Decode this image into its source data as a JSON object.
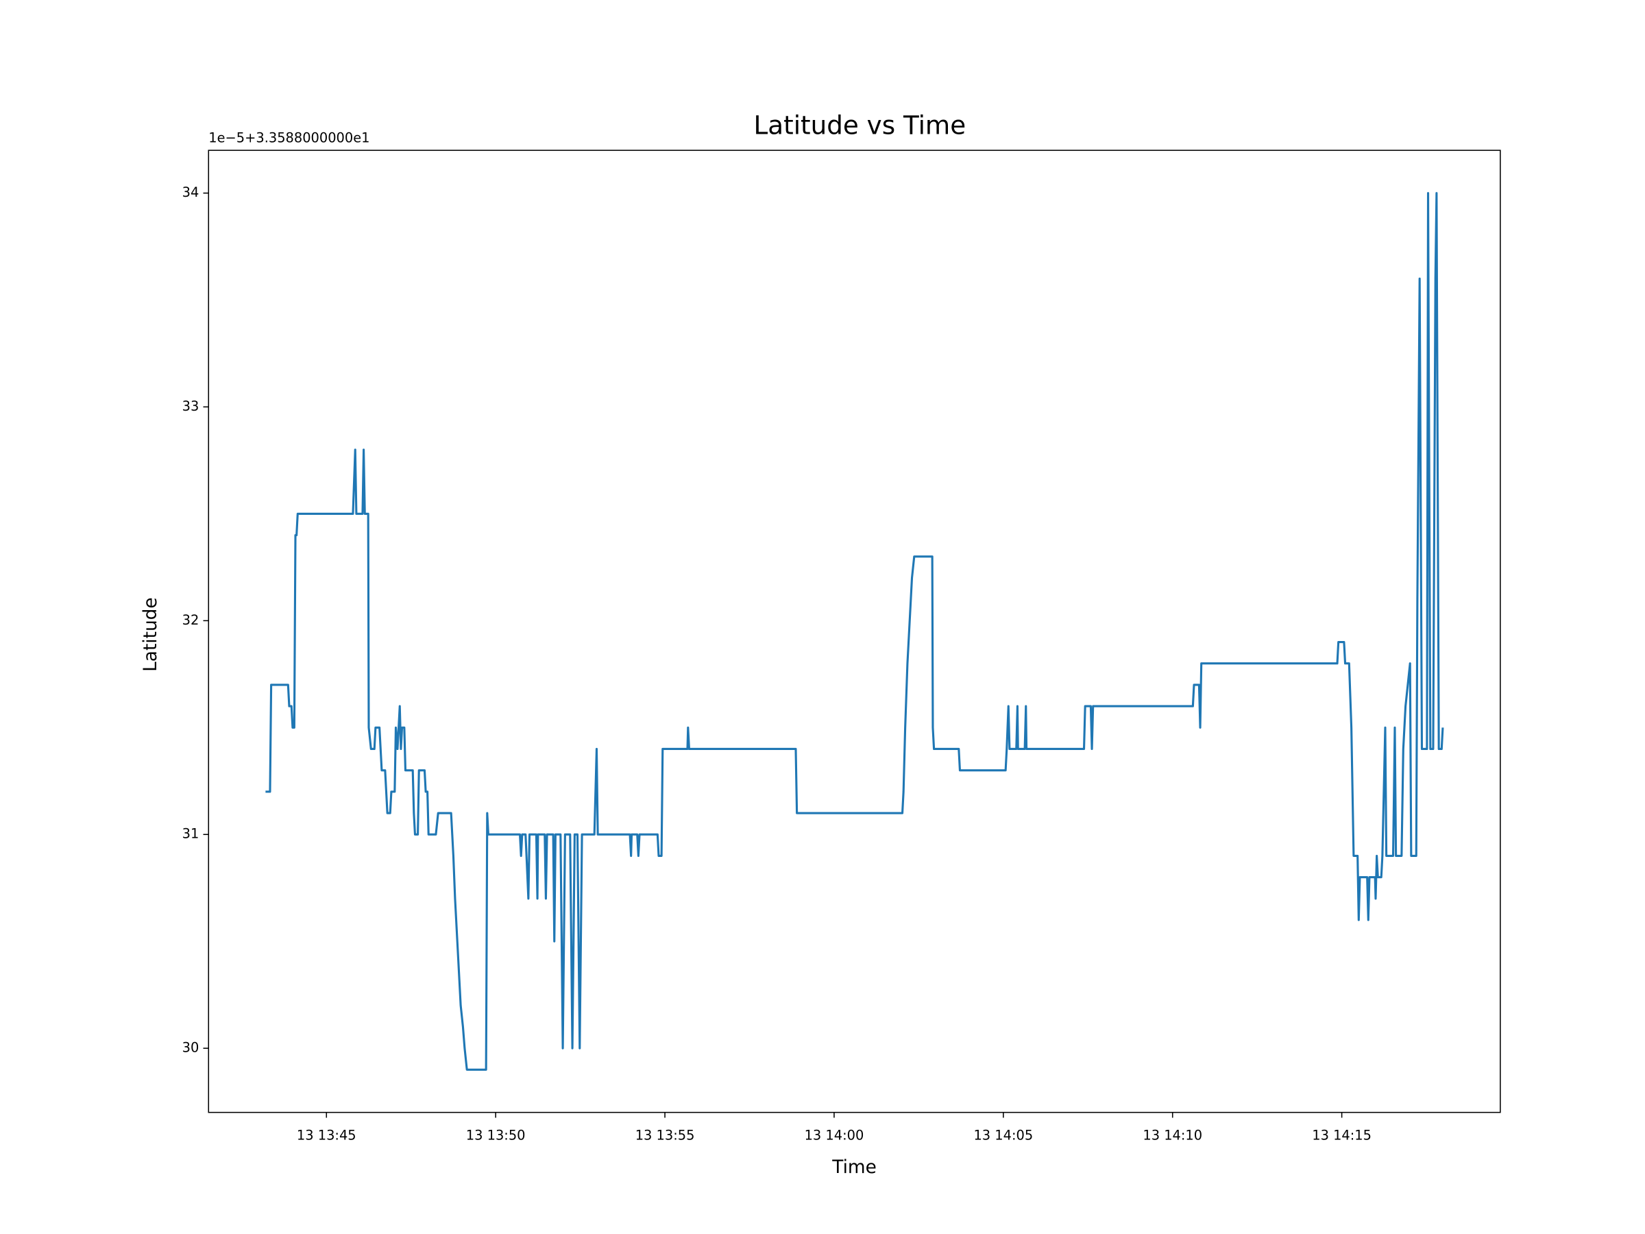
{
  "chart_data": {
    "type": "line",
    "title": "Latitude vs Time",
    "xlabel": "Time",
    "ylabel": "Latitude",
    "offset_text": "1e−5+3.3588000000e1",
    "xlim": [
      "13 13:41:31",
      "13 14:19:41"
    ],
    "xticks": [
      "13 13:45",
      "13 13:50",
      "13 13:55",
      "13 14:00",
      "13 14:05",
      "13 14:10",
      "13 14:15"
    ],
    "ylim": [
      29.7,
      34.2
    ],
    "yticks": [
      30,
      31,
      32,
      33,
      34
    ],
    "grid": false,
    "series": [
      {
        "color": "#1f77b4",
        "x": [
          "13 13:43:12",
          "13 13:43:20",
          "13 13:43:22",
          "13 13:43:52",
          "13 13:43:54",
          "13 13:43:58",
          "13 13:44:00",
          "13 13:44:03",
          "13 13:44:05",
          "13 13:44:07",
          "13 13:44:09",
          "13 13:45:47",
          "13 13:45:51",
          "13 13:45:53",
          "13 13:46:04",
          "13 13:46:06",
          "13 13:46:08",
          "13 13:46:14",
          "13 13:46:15",
          "13 13:46:19",
          "13 13:46:25",
          "13 13:46:27",
          "13 13:46:34",
          "13 13:46:36",
          "13 13:46:38",
          "13 13:46:44",
          "13 13:46:46",
          "13 13:46:48",
          "13 13:46:53",
          "13 13:46:55",
          "13 13:47:01",
          "13 13:47:03",
          "13 13:47:06",
          "13 13:47:10",
          "13 13:47:12",
          "13 13:47:14",
          "13 13:47:18",
          "13 13:47:20",
          "13 13:47:33",
          "13 13:47:35",
          "13 13:47:37",
          "13 13:47:42",
          "13 13:47:44",
          "13 13:47:54",
          "13 13:47:56",
          "13 13:47:59",
          "13 13:48:01",
          "13 13:48:14",
          "13 13:48:18",
          "13 13:48:41",
          "13 13:48:45",
          "13 13:48:48",
          "13 13:48:50",
          "13 13:48:52",
          "13 13:48:54",
          "13 13:48:56",
          "13 13:48:58",
          "13 13:49:02",
          "13 13:49:05",
          "13 13:49:09",
          "13 13:49:43",
          "13 13:49:45",
          "13 13:49:47",
          "13 13:50:43",
          "13 13:50:45",
          "13 13:50:47",
          "13 13:50:53",
          "13 13:50:58",
          "13 13:51:00",
          "13 13:51:12",
          "13 13:51:14",
          "13 13:51:15",
          "13 13:51:27",
          "13 13:51:29",
          "13 13:51:31",
          "13 13:51:42",
          "13 13:51:44",
          "13 13:51:46",
          "13 13:51:55",
          "13 13:51:59",
          "13 13:52:03",
          "13 13:52:12",
          "13 13:52:16",
          "13 13:52:20",
          "13 13:52:25",
          "13 13:52:29",
          "13 13:52:33",
          "13 13:52:55",
          "13 13:52:59",
          "13 13:53:01",
          "13 13:53:58",
          "13 13:54:00",
          "13 13:54:01",
          "13 13:54:11",
          "13 13:54:13",
          "13 13:54:15",
          "13 13:54:47",
          "13 13:54:49",
          "13 13:54:54",
          "13 13:54:56",
          "13 13:55:40",
          "13 13:55:41",
          "13 13:55:43",
          "13 13:58:52",
          "13 13:58:54",
          "13 14:02:01",
          "13 14:02:03",
          "13 14:02:06",
          "13 14:02:10",
          "13 14:02:14",
          "13 14:02:18",
          "13 14:02:22",
          "13 14:02:54",
          "13 14:02:55",
          "13 14:02:57",
          "13 14:03:41",
          "13 14:03:43",
          "13 14:05:04",
          "13 14:05:06",
          "13 14:05:09",
          "13 14:05:11",
          "13 14:05:23",
          "13 14:05:25",
          "13 14:05:26",
          "13 14:05:38",
          "13 14:05:40",
          "13 14:05:41",
          "13 14:07:23",
          "13 14:07:25",
          "13 14:07:35",
          "13 14:07:37",
          "13 14:07:39",
          "13 14:10:36",
          "13 14:10:38",
          "13 14:10:47",
          "13 14:10:49",
          "13 14:10:51",
          "13 14:14:52",
          "13 14:14:54",
          "13 14:15:04",
          "13 14:15:06",
          "13 14:15:13",
          "13 14:15:17",
          "13 14:15:21",
          "13 14:15:28",
          "13 14:15:30",
          "13 14:15:32",
          "13 14:15:45",
          "13 14:15:47",
          "13 14:15:49",
          "13 14:15:59",
          "13 14:16:00",
          "13 14:16:02",
          "13 14:16:04",
          "13 14:16:10",
          "13 14:16:12",
          "13 14:16:17",
          "13 14:16:19",
          "13 14:16:31",
          "13 14:16:34",
          "13 14:16:36",
          "13 14:16:46",
          "13 14:16:49",
          "13 14:16:53",
          "13 14:16:57",
          "13 14:17:01",
          "13 14:17:03",
          "13 14:17:12",
          "13 14:17:14",
          "13 14:17:18",
          "13 14:17:22",
          "13 14:17:31",
          "13 14:17:33",
          "13 14:17:37",
          "13 14:17:42",
          "13 14:17:46",
          "13 14:17:48",
          "13 14:17:52",
          "13 14:17:57",
          "13 14:17:59"
        ],
        "values": [
          31.2,
          31.2,
          31.7,
          31.7,
          31.6,
          31.6,
          31.5,
          31.5,
          32.4,
          32.4,
          32.5,
          32.5,
          32.8,
          32.5,
          32.5,
          32.8,
          32.5,
          32.5,
          31.5,
          31.4,
          31.4,
          31.5,
          31.5,
          31.4,
          31.3,
          31.3,
          31.2,
          31.1,
          31.1,
          31.2,
          31.2,
          31.5,
          31.4,
          31.6,
          31.4,
          31.5,
          31.5,
          31.3,
          31.3,
          31.1,
          31.0,
          31.0,
          31.3,
          31.3,
          31.2,
          31.2,
          31.0,
          31.0,
          31.1,
          31.1,
          30.9,
          30.7,
          30.6,
          30.5,
          30.4,
          30.3,
          30.2,
          30.1,
          30.0,
          29.9,
          29.9,
          31.1,
          31.0,
          31.0,
          30.9,
          31.0,
          31.0,
          30.7,
          31.0,
          31.0,
          30.7,
          31.0,
          31.0,
          30.7,
          31.0,
          31.0,
          30.5,
          31.0,
          31.0,
          30.0,
          31.0,
          31.0,
          30.0,
          31.0,
          31.0,
          30.0,
          31.0,
          31.0,
          31.4,
          31.0,
          31.0,
          30.9,
          31.0,
          31.0,
          30.9,
          31.0,
          31.0,
          30.9,
          30.9,
          31.4,
          31.4,
          31.5,
          31.4,
          31.4,
          31.1,
          31.1,
          31.2,
          31.5,
          31.8,
          32.0,
          32.2,
          32.3,
          32.3,
          31.5,
          31.4,
          31.4,
          31.3,
          31.3,
          31.4,
          31.6,
          31.4,
          31.4,
          31.6,
          31.4,
          31.4,
          31.6,
          31.4,
          31.4,
          31.6,
          31.6,
          31.4,
          31.6,
          31.6,
          31.7,
          31.7,
          31.5,
          31.8,
          31.8,
          31.9,
          31.9,
          31.8,
          31.8,
          31.5,
          30.9,
          30.9,
          30.6,
          30.8,
          30.8,
          30.6,
          30.8,
          30.8,
          30.7,
          30.9,
          30.8,
          30.8,
          30.9,
          31.5,
          30.9,
          30.9,
          31.5,
          30.9,
          30.9,
          31.4,
          31.6,
          31.7,
          31.8,
          30.9,
          30.9,
          32.1,
          33.6,
          31.4,
          31.4,
          34.0,
          31.4,
          31.4,
          33.6,
          34.0,
          31.4,
          31.4,
          31.5
        ]
      }
    ]
  }
}
